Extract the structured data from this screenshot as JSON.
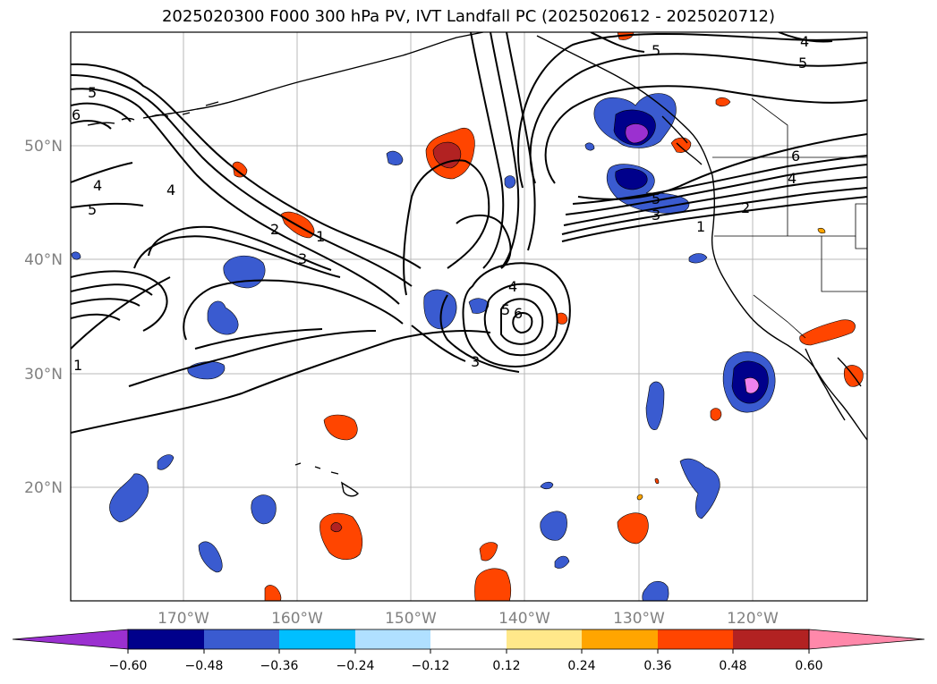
{
  "title": "2025020300 F000 300 hPa PV, IVT Landfall PC (2025020612 - 2025020712)",
  "lat_labels": [
    "50°N",
    "40°N",
    "30°N",
    "20°N"
  ],
  "lon_labels": [
    "170°W",
    "160°W",
    "150°W",
    "140°W",
    "130°W",
    "120°W"
  ],
  "colorbar": {
    "extend": "both",
    "ticks": [
      "−0.60",
      "−0.48",
      "−0.36",
      "−0.24",
      "−0.12",
      "0.12",
      "0.24",
      "0.36",
      "0.48",
      "0.60"
    ],
    "colors": [
      "#9b30d0",
      "#00008b",
      "#3a5bd0",
      "#00bfff",
      "#b0e0ff",
      "#ffffff",
      "#ffe88a",
      "#ffa500",
      "#ff4500",
      "#b22222",
      "#ff88aa"
    ]
  },
  "contour_labels": [
    "5",
    "6",
    "4",
    "5",
    "4",
    "2",
    "1",
    "3",
    "1",
    "4",
    "5",
    "6",
    "3",
    "4",
    "5",
    "6",
    "4",
    "2",
    "1",
    "3",
    "5",
    "5"
  ]
}
